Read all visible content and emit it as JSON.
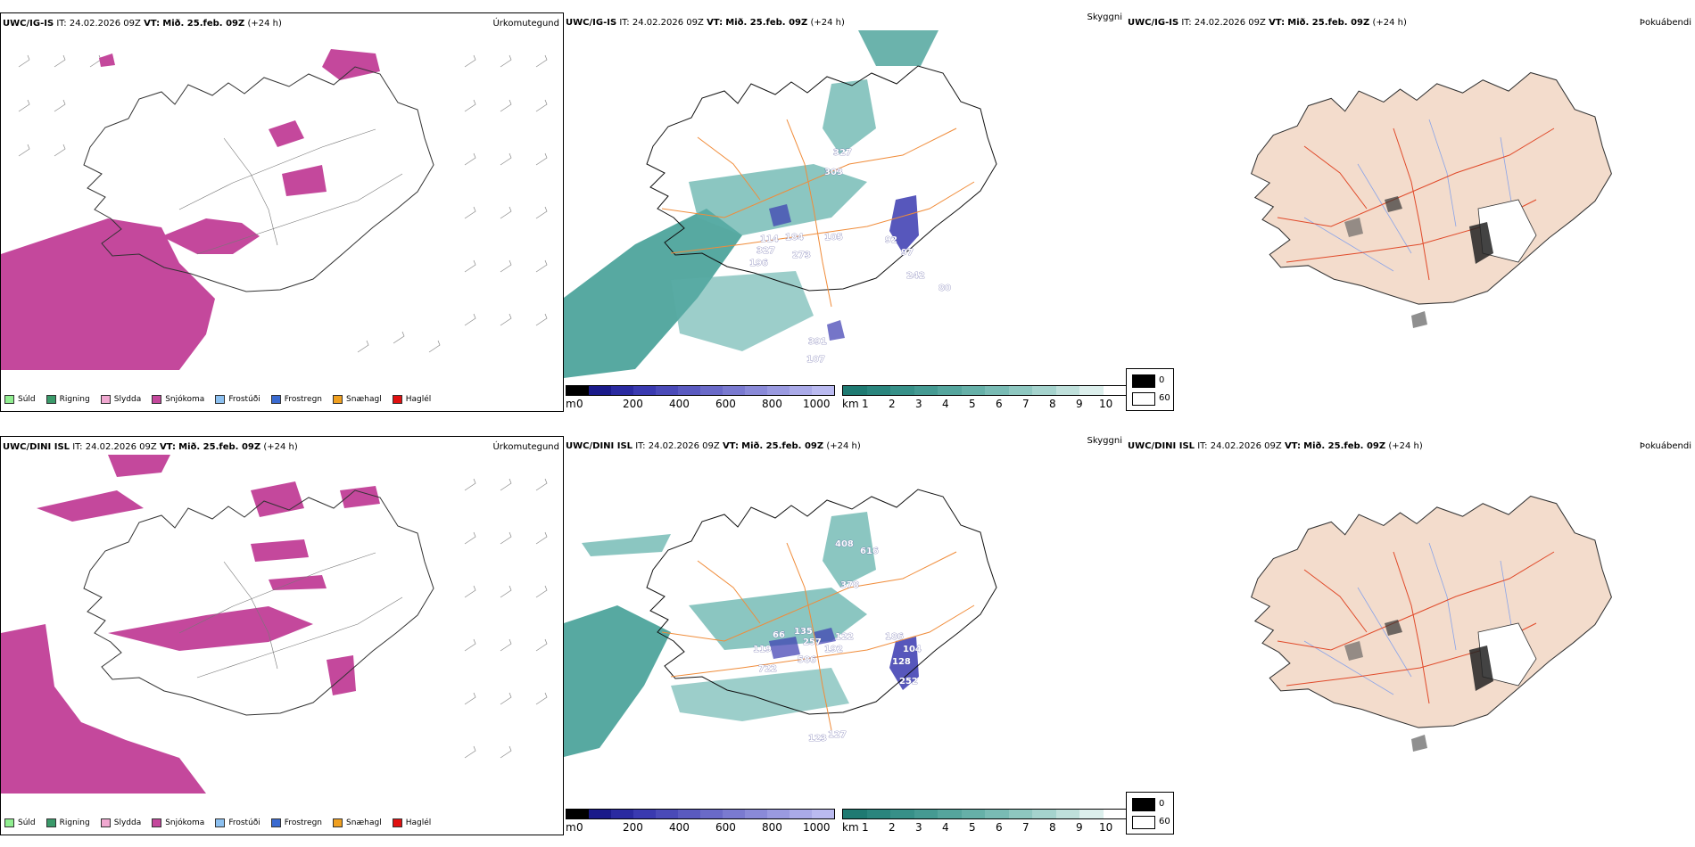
{
  "colors": {
    "snow": "#c4489c",
    "cloud": "#3a9a90",
    "ground": "#f3dccc",
    "road": "#f08c3a",
    "road_red": "#e04a2a",
    "river": "#8ba4e8",
    "high": "#3a3ab0"
  },
  "rows": [
    {
      "p1": {
        "model": "UWC/IG-IS",
        "it_label": "IT:",
        "it_value": "24.02.2026 09Z",
        "vt_label": "VT:",
        "vt_value": "Mið. 25.feb. 09Z",
        "lead": "(+24 h)",
        "title": "Úrkomutegund"
      },
      "p2": {
        "model": "UWC/IG-IS",
        "it_label": "IT:",
        "it_value": "24.02.2026 09Z",
        "vt_label": "VT:",
        "vt_value": "Mið. 25.feb. 09Z",
        "lead": "(+24 h)",
        "title": "Skyggni",
        "peaks": [
          "327",
          "303",
          "114",
          "184",
          "105",
          "92",
          "327",
          "196",
          "273",
          "97",
          "242",
          "80",
          "391",
          "107"
        ]
      },
      "p3": {
        "model": "UWC/IG-IS",
        "it_label": "IT:",
        "it_value": "24.02.2026 09Z",
        "vt_label": "VT:",
        "vt_value": "Mið. 25.feb. 09Z",
        "lead": "(+24 h)",
        "title": "Þokuábendi"
      }
    },
    {
      "p1": {
        "model": "UWC/DINI ISL",
        "it_label": "IT:",
        "it_value": "24.02.2026 09Z",
        "vt_label": "VT:",
        "vt_value": "Mið. 25.feb. 09Z",
        "lead": "(+24 h)",
        "title": "Úrkomutegund"
      },
      "p2": {
        "model": "UWC/DINI ISL",
        "it_label": "IT:",
        "it_value": "24.02.2026 09Z",
        "vt_label": "VT:",
        "vt_value": "Mið. 25.feb. 09Z",
        "lead": "(+24 h)",
        "title": "Skyggni",
        "peaks": [
          "408",
          "616",
          "378",
          "66",
          "135",
          "257",
          "122",
          "186",
          "104",
          "119",
          "192",
          "128",
          "586",
          "722",
          "252",
          "123",
          "127"
        ]
      },
      "p3": {
        "model": "UWC/DINI ISL",
        "it_label": "IT:",
        "it_value": "24.02.2026 09Z",
        "vt_label": "VT:",
        "vt_value": "Mið. 25.feb. 09Z",
        "lead": "(+24 h)",
        "title": "Þokuábendi"
      }
    }
  ],
  "precip_legend": [
    {
      "label": "Súld",
      "color": "#90ee90"
    },
    {
      "label": "Rigning",
      "color": "#3a9a6a"
    },
    {
      "label": "Slydda",
      "color": "#f0a8d0"
    },
    {
      "label": "Snjókoma",
      "color": "#c4489c"
    },
    {
      "label": "Frostúði",
      "color": "#8cc0f0"
    },
    {
      "label": "Frostregn",
      "color": "#3a6ad0"
    },
    {
      "label": "Snæhagl",
      "color": "#f0a020"
    },
    {
      "label": "Haglél",
      "color": "#e01010"
    }
  ],
  "cloudbase_bar": {
    "unit": "m",
    "ticks": [
      "0",
      "200",
      "400",
      "600",
      "800",
      "1000"
    ],
    "colors": [
      "#000000",
      "#1a1a8a",
      "#2a2aa0",
      "#3a3ab0",
      "#4a4ab8",
      "#5a5ac0",
      "#6a6ac8",
      "#7a7ad0",
      "#8a8ad8",
      "#9a9ae0",
      "#aaaae8",
      "#babaf0"
    ]
  },
  "visibility_bar": {
    "unit": "km",
    "ticks": [
      "1",
      "2",
      "3",
      "4",
      "5",
      "6",
      "7",
      "8",
      "9",
      "10"
    ],
    "colors": [
      "#1f7a72",
      "#2a857d",
      "#379088",
      "#459a92",
      "#55a59d",
      "#66b0a8",
      "#79bbb4",
      "#8ec7c0",
      "#a5d3cd",
      "#bfe0db",
      "#dcefec",
      "#ffffff"
    ]
  },
  "fog_legend": [
    {
      "label": "0",
      "color": "#000000"
    },
    {
      "label": "60",
      "color": "#ffffff"
    }
  ]
}
